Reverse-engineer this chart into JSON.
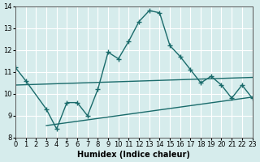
{
  "xlabel": "Humidex (Indice chaleur)",
  "bg_color": "#d6ecec",
  "grid_color": "#ffffff",
  "line_color": "#1a6b6b",
  "xlim": [
    0,
    23
  ],
  "ylim": [
    8,
    14
  ],
  "xticks": [
    0,
    1,
    2,
    3,
    4,
    5,
    6,
    7,
    8,
    9,
    10,
    11,
    12,
    13,
    14,
    15,
    16,
    17,
    18,
    19,
    20,
    21,
    22,
    23
  ],
  "yticks": [
    8,
    9,
    10,
    11,
    12,
    13,
    14
  ],
  "main_x": [
    0,
    1,
    3,
    4,
    5,
    6,
    7,
    8,
    9,
    10,
    11,
    12,
    13,
    14,
    15,
    16,
    17,
    18,
    19,
    20,
    21,
    22,
    23
  ],
  "main_y": [
    11.2,
    10.6,
    9.3,
    8.4,
    9.6,
    9.6,
    9.0,
    10.2,
    11.9,
    11.6,
    12.4,
    13.3,
    13.8,
    13.7,
    12.2,
    11.7,
    11.1,
    10.5,
    10.8,
    10.4,
    9.8,
    10.4,
    9.8
  ],
  "line2_x": [
    0,
    23
  ],
  "line2_y": [
    10.4,
    10.75
  ],
  "line3_x": [
    3,
    23
  ],
  "line3_y": [
    8.55,
    9.85
  ]
}
